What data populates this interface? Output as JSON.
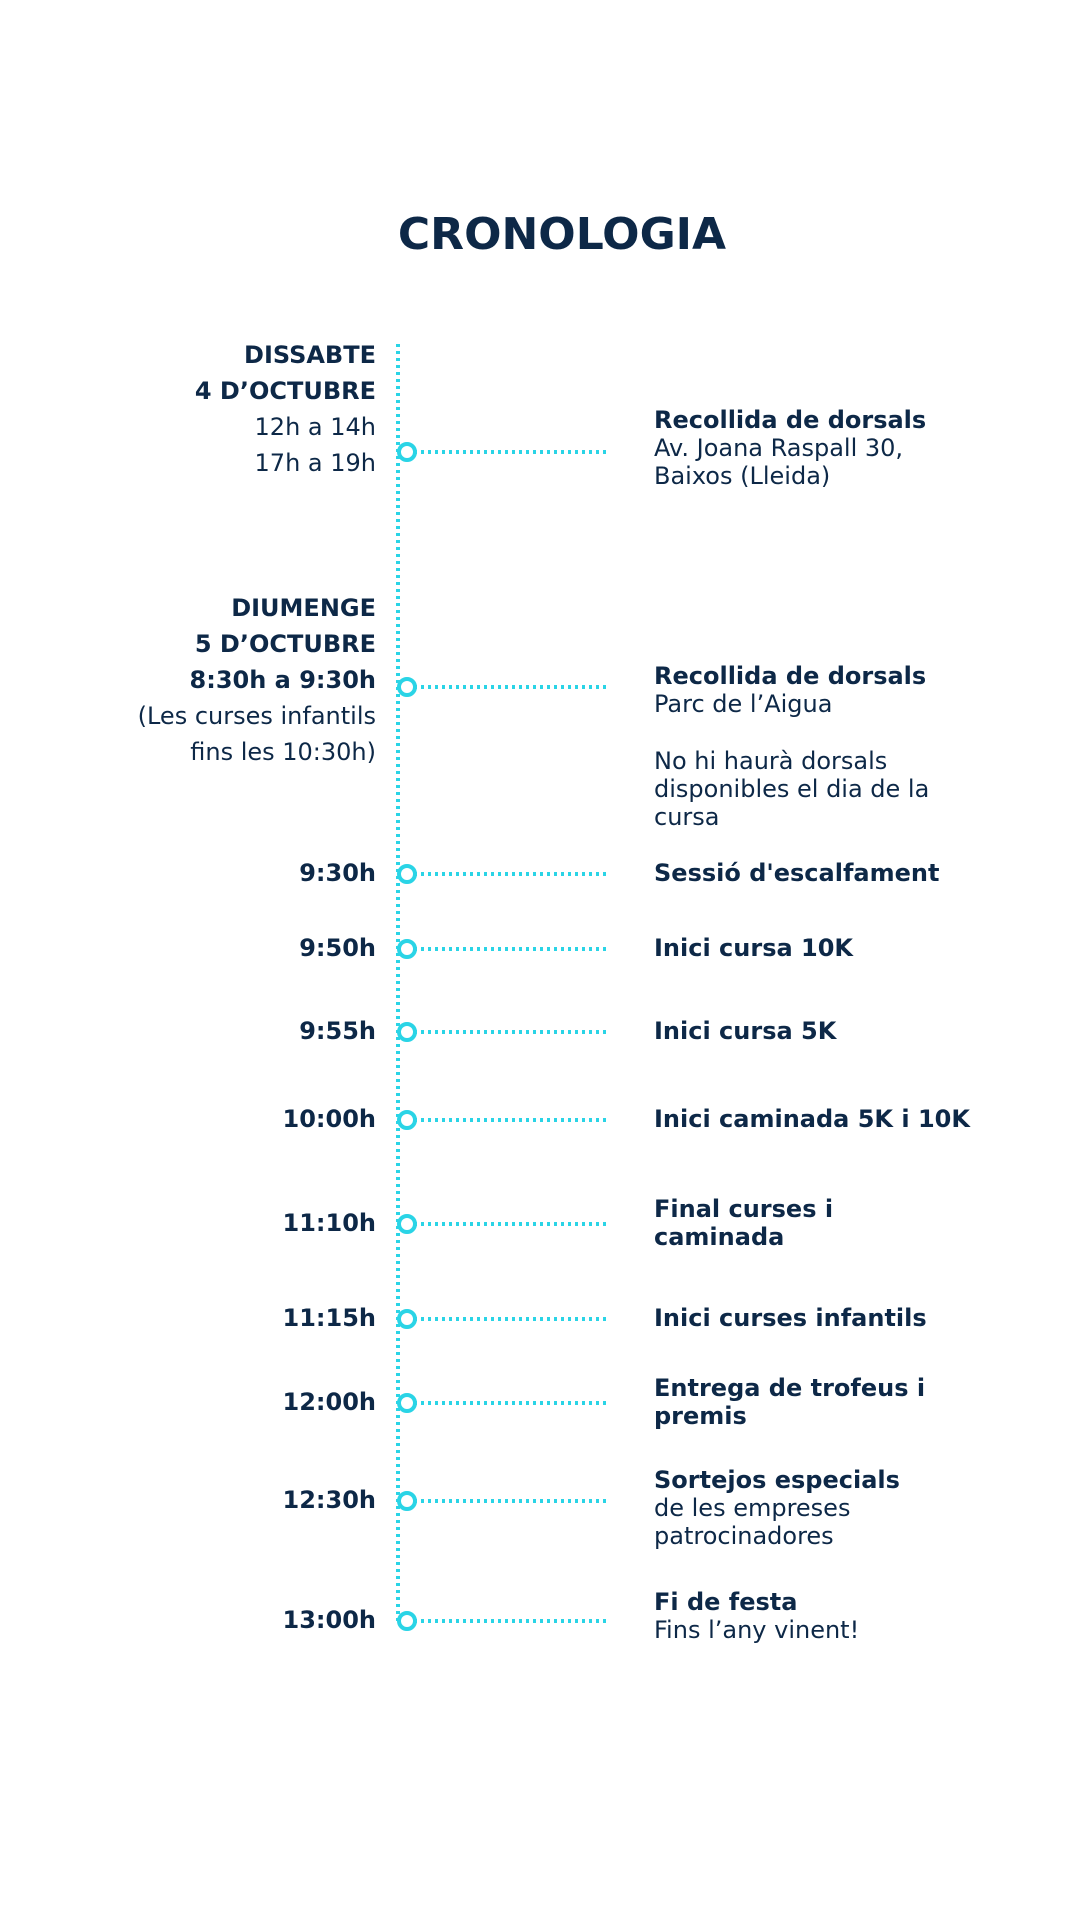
{
  "title": "CRONOLOGIA",
  "items": [
    {
      "day": "DISSABTE",
      "date": "4 D’OCTUBRE",
      "times": [
        "12h a 14h",
        "17h a 19h"
      ],
      "heading": [
        "Recollida de dorsals"
      ],
      "details": [
        "Av. Joana Raspall 30,",
        "Baixos (Lleida)"
      ]
    },
    {
      "day": "DIUMENGE",
      "date": "5 D’OCTUBRE",
      "times": [
        "8:30h a 9:30h",
        "(Les curses infantils",
        "fins les 10:30h)"
      ],
      "heading": [
        "Recollida de dorsals"
      ],
      "details": [
        "Parc de l’Aigua"
      ],
      "note": [
        "No hi haurà dorsals",
        "disponibles el dia de la",
        "cursa"
      ]
    },
    {
      "times": [
        "9:30h"
      ],
      "heading": [
        "Sessió d'escalfament"
      ]
    },
    {
      "times": [
        "9:50h"
      ],
      "heading": [
        "Inici cursa 10K"
      ]
    },
    {
      "times": [
        "9:55h"
      ],
      "heading": [
        "Inici cursa 5K"
      ]
    },
    {
      "times": [
        "10:00h"
      ],
      "heading": [
        "Inici caminada 5K i 10K"
      ]
    },
    {
      "times": [
        "11:10h"
      ],
      "heading": [
        "Final curses i",
        "caminada"
      ]
    },
    {
      "times": [
        "11:15h"
      ],
      "heading": [
        "Inici curses infantils"
      ]
    },
    {
      "times": [
        "12:00h"
      ],
      "heading": [
        "Entrega de trofeus i",
        "premis"
      ]
    },
    {
      "times": [
        "12:30h"
      ],
      "heading": [
        "Sortejos especials"
      ],
      "details": [
        "de les empreses",
        "patrocinadores"
      ]
    },
    {
      "times": [
        "13:00h"
      ],
      "heading": [
        "Fi de festa"
      ],
      "details": [
        "Fins l’any vinent!"
      ]
    }
  ]
}
